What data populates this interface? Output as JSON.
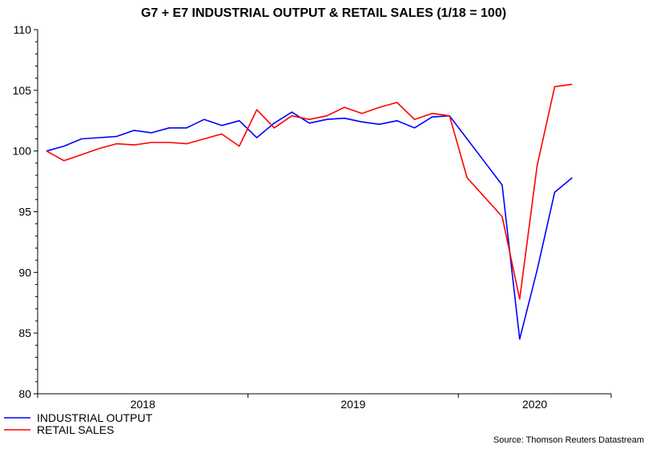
{
  "chart_data": {
    "type": "line",
    "title": "G7 + E7 INDUSTRIAL OUTPUT & RETAIL SALES (1/18 = 100)",
    "source": "Source: Thomson Reuters Datastream",
    "x": [
      "2018-01",
      "2018-02",
      "2018-03",
      "2018-04",
      "2018-05",
      "2018-06",
      "2018-07",
      "2018-08",
      "2018-09",
      "2018-10",
      "2018-11",
      "2018-12",
      "2019-01",
      "2019-02",
      "2019-03",
      "2019-04",
      "2019-05",
      "2019-06",
      "2019-07",
      "2019-08",
      "2019-09",
      "2019-10",
      "2019-11",
      "2019-12",
      "2020-01",
      "2020-02",
      "2020-03",
      "2020-04",
      "2020-05",
      "2020-06",
      "2020-07"
    ],
    "x_tick_labels": [
      "2018",
      "2019",
      "2020"
    ],
    "y_tick_labels": [
      "80",
      "85",
      "90",
      "95",
      "100",
      "105",
      "110"
    ],
    "ylim": [
      80,
      110
    ],
    "legend_position": "bottom-left",
    "series": [
      {
        "name": "INDUSTRIAL OUTPUT",
        "color": "#0000ff",
        "values": [
          100.0,
          100.4,
          101.0,
          101.1,
          101.2,
          101.7,
          101.5,
          101.9,
          101.9,
          102.6,
          102.1,
          102.5,
          101.1,
          102.3,
          103.2,
          102.3,
          102.6,
          102.7,
          102.4,
          102.2,
          102.5,
          101.9,
          102.8,
          102.9,
          101.0,
          99.1,
          97.2,
          84.5,
          90.2,
          96.6,
          97.8
        ]
      },
      {
        "name": "RETAIL SALES",
        "color": "#ff0000",
        "values": [
          100.0,
          99.2,
          99.7,
          100.2,
          100.6,
          100.5,
          100.7,
          100.7,
          100.6,
          101.0,
          101.4,
          100.4,
          103.4,
          101.9,
          102.9,
          102.6,
          102.9,
          103.6,
          103.1,
          103.6,
          104.0,
          102.6,
          103.1,
          102.9,
          97.8,
          96.2,
          94.6,
          87.8,
          98.8,
          105.3,
          105.5
        ]
      }
    ]
  }
}
